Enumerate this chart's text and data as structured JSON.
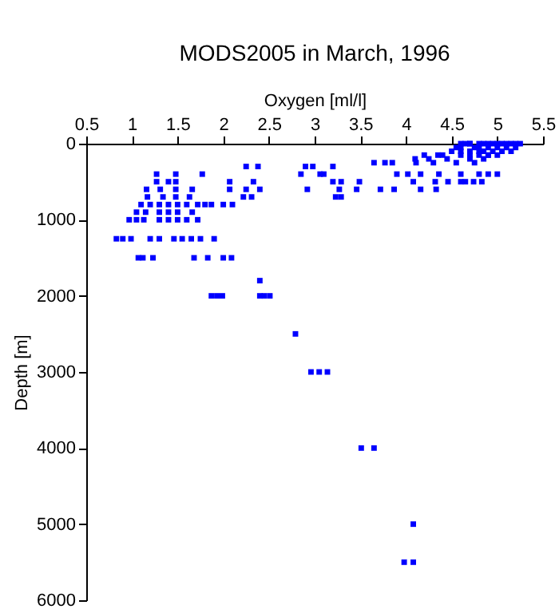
{
  "chart_data": {
    "type": "scatter",
    "title": "MODS2005 in March, 1996",
    "xlabel": "Oxygen [ml/l]",
    "ylabel": "Depth [m]",
    "xlim": [
      0.5,
      5.5
    ],
    "xticks": [
      0.5,
      1,
      1.5,
      2,
      2.5,
      3,
      3.5,
      4,
      4.5,
      5,
      5.5
    ],
    "ylim": [
      6000,
      0
    ],
    "yticks": [
      0,
      1000,
      2000,
      3000,
      4000,
      5000,
      6000
    ],
    "grid": false,
    "marker": "square",
    "series": [
      {
        "color": "#0000ff",
        "x": [
          4.6,
          4.7,
          4.8,
          4.9,
          5.0,
          5.1,
          5.2,
          4.65,
          4.85,
          5.05,
          5.25,
          4.7,
          4.95,
          5.15,
          4.6,
          4.8,
          5.0,
          5.2,
          4.55,
          4.75,
          4.9,
          5.1,
          4.5,
          4.7,
          4.85,
          5.05,
          4.6,
          4.8,
          4.95,
          5.15,
          4.4,
          4.7,
          4.9,
          5.0,
          4.2,
          4.35,
          4.6,
          4.8,
          4.9,
          4.1,
          4.25,
          4.45,
          4.7,
          4.85,
          4.3,
          4.55,
          4.75,
          2.9,
          3.2,
          3.65,
          3.77,
          3.85,
          4.11,
          2.25,
          2.38,
          2.98,
          1.27,
          1.48,
          1.77,
          2.85,
          3.06,
          3.1,
          3.9,
          4.02,
          4.16,
          4.36,
          4.6,
          4.8,
          4.9,
          5.0,
          1.27,
          1.4,
          1.48,
          2.07,
          2.33,
          3.2,
          3.29,
          3.49,
          4.08,
          4.32,
          4.46,
          4.6,
          4.65,
          4.74,
          4.83,
          1.16,
          1.31,
          1.48,
          1.66,
          2.07,
          2.25,
          2.4,
          2.92,
          3.27,
          3.46,
          3.72,
          3.87,
          4.16,
          4.33,
          1.17,
          1.34,
          1.48,
          1.63,
          2.22,
          2.31,
          3.23,
          3.29,
          1.1,
          1.2,
          1.3,
          1.4,
          1.5,
          1.6,
          1.72,
          1.8,
          1.87,
          2.0,
          2.1,
          1.05,
          1.15,
          1.3,
          1.4,
          1.5,
          1.66,
          0.97,
          1.05,
          1.13,
          1.3,
          1.4,
          1.5,
          1.6,
          1.72,
          0.83,
          0.9,
          0.99,
          1.2,
          1.3,
          1.46,
          1.55,
          1.65,
          1.75,
          1.9,
          1.07,
          1.12,
          1.23,
          1.68,
          1.83,
          2.0,
          2.09,
          2.4,
          1.87,
          1.93,
          1.99,
          2.4,
          2.45,
          2.51,
          2.79,
          2.96,
          3.05,
          3.14,
          3.51,
          3.65,
          4.08,
          3.98,
          4.08
        ],
        "values": [
          0,
          0,
          0,
          0,
          0,
          0,
          0,
          0,
          0,
          0,
          0,
          0,
          0,
          0,
          50,
          50,
          50,
          50,
          50,
          50,
          50,
          50,
          100,
          100,
          100,
          100,
          100,
          100,
          100,
          100,
          150,
          150,
          150,
          150,
          150,
          150,
          150,
          150,
          150,
          200,
          200,
          200,
          200,
          200,
          250,
          250,
          250,
          300,
          300,
          250,
          250,
          250,
          250,
          300,
          300,
          300,
          400,
          400,
          400,
          400,
          400,
          400,
          400,
          400,
          400,
          400,
          400,
          400,
          400,
          400,
          500,
          500,
          500,
          500,
          500,
          500,
          500,
          500,
          500,
          500,
          500,
          500,
          500,
          500,
          500,
          600,
          600,
          600,
          600,
          600,
          600,
          600,
          600,
          600,
          600,
          600,
          600,
          600,
          600,
          700,
          700,
          700,
          700,
          700,
          700,
          700,
          700,
          800,
          800,
          800,
          800,
          800,
          800,
          800,
          800,
          800,
          800,
          800,
          900,
          900,
          900,
          900,
          900,
          900,
          1000,
          1000,
          1000,
          1000,
          1000,
          1000,
          1000,
          1000,
          1250,
          1250,
          1250,
          1250,
          1250,
          1250,
          1250,
          1250,
          1250,
          1250,
          1500,
          1500,
          1500,
          1500,
          1500,
          1500,
          1500,
          1800,
          2000,
          2000,
          2000,
          2000,
          2000,
          2000,
          2500,
          3000,
          3000,
          3000,
          4000,
          4000,
          5000,
          5500,
          5500
        ]
      }
    ]
  }
}
